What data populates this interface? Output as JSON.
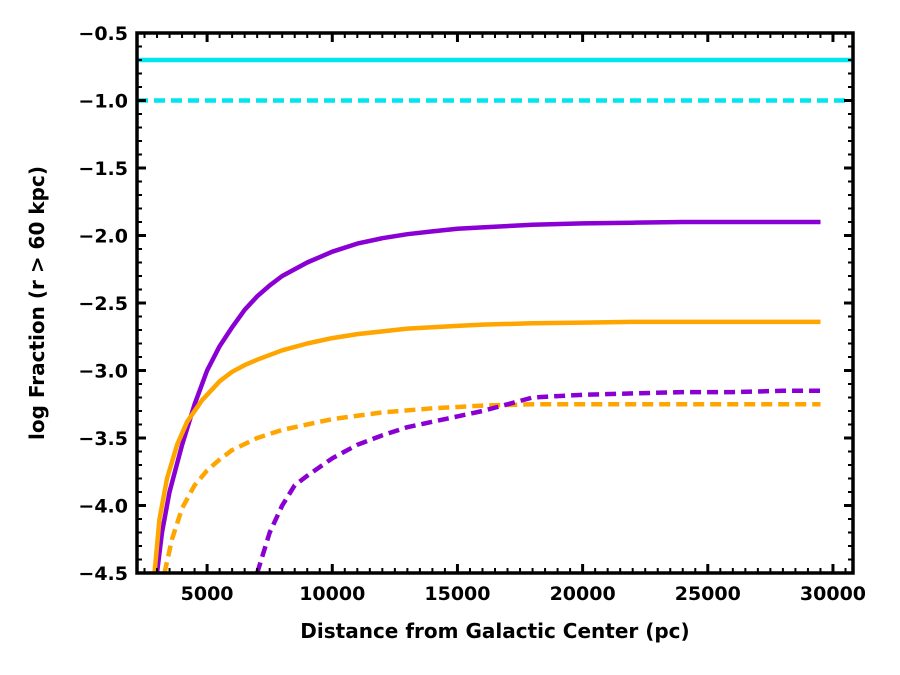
{
  "chart_data": {
    "type": "line",
    "title": "",
    "xlabel": "Distance from Galactic Center (pc)",
    "ylabel": "log Fraction (r > 60 kpc)",
    "xlim": [
      2200,
      30800
    ],
    "ylim": [
      -4.5,
      -0.5
    ],
    "xticks": [
      5000,
      10000,
      15000,
      20000,
      25000,
      30000
    ],
    "yticks": [
      -4.5,
      -4.0,
      -3.5,
      -3.0,
      -2.5,
      -2.0,
      -1.5,
      -1.0,
      -0.5
    ],
    "xtick_labels": [
      "5000",
      "10000",
      "15000",
      "20000",
      "25000",
      "30000"
    ],
    "ytick_labels": [
      "−4.5",
      "−4.0",
      "−3.5",
      "−3.0",
      "−2.5",
      "−2.0",
      "−1.5",
      "−1.0",
      "−0.5"
    ],
    "grid": false,
    "series": [
      {
        "color": "#00e5ee",
        "style": "solid",
        "x": [
          2200,
          30800
        ],
        "y": [
          -0.7,
          -0.7
        ]
      },
      {
        "color": "#00e5ee",
        "style": "dashed",
        "x": [
          2200,
          30800
        ],
        "y": [
          -1.0,
          -1.0
        ]
      },
      {
        "color": "#8a00d4",
        "style": "solid",
        "x": [
          3000,
          3200,
          3500,
          4000,
          4500,
          5000,
          5500,
          6000,
          6500,
          7000,
          7500,
          8000,
          9000,
          10000,
          11000,
          12000,
          13000,
          14000,
          15000,
          16000,
          18000,
          20000,
          22000,
          24000,
          26000,
          28000,
          29500
        ],
        "y": [
          -4.5,
          -4.2,
          -3.9,
          -3.55,
          -3.25,
          -3.0,
          -2.82,
          -2.68,
          -2.55,
          -2.45,
          -2.37,
          -2.3,
          -2.2,
          -2.12,
          -2.06,
          -2.02,
          -1.99,
          -1.97,
          -1.95,
          -1.94,
          -1.92,
          -1.91,
          -1.905,
          -1.9,
          -1.9,
          -1.9,
          -1.9
        ]
      },
      {
        "color": "#ffa500",
        "style": "solid",
        "x": [
          2900,
          3100,
          3400,
          3800,
          4200,
          4800,
          5500,
          6000,
          6500,
          7000,
          8000,
          9000,
          10000,
          11000,
          12000,
          13000,
          14000,
          15000,
          16000,
          18000,
          20000,
          22000,
          24000,
          26000,
          28000,
          29500
        ],
        "y": [
          -4.5,
          -4.1,
          -3.8,
          -3.55,
          -3.38,
          -3.22,
          -3.08,
          -3.01,
          -2.96,
          -2.92,
          -2.85,
          -2.8,
          -2.76,
          -2.73,
          -2.71,
          -2.69,
          -2.68,
          -2.67,
          -2.66,
          -2.65,
          -2.645,
          -2.64,
          -2.64,
          -2.64,
          -2.64,
          -2.64
        ]
      },
      {
        "color": "#ffa500",
        "style": "dashed",
        "x": [
          3300,
          3600,
          4000,
          4500,
          5000,
          5500,
          6000,
          7000,
          8000,
          9000,
          10000,
          12000,
          14000,
          16000,
          18000,
          20000,
          22000,
          24000,
          26000,
          28000,
          29500
        ],
        "y": [
          -4.5,
          -4.25,
          -4.02,
          -3.85,
          -3.74,
          -3.66,
          -3.59,
          -3.5,
          -3.44,
          -3.4,
          -3.36,
          -3.31,
          -3.28,
          -3.26,
          -3.25,
          -3.25,
          -3.25,
          -3.25,
          -3.25,
          -3.25,
          -3.25
        ]
      },
      {
        "color": "#8a00d4",
        "style": "dashed",
        "x": [
          7000,
          7500,
          8000,
          8500,
          9000,
          10000,
          11000,
          12000,
          13000,
          14000,
          15000,
          16000,
          17000,
          18000,
          19000,
          20000,
          22000,
          24000,
          26000,
          28000,
          29500
        ],
        "y": [
          -4.5,
          -4.2,
          -4.0,
          -3.85,
          -3.78,
          -3.65,
          -3.55,
          -3.48,
          -3.42,
          -3.38,
          -3.34,
          -3.3,
          -3.25,
          -3.2,
          -3.19,
          -3.18,
          -3.17,
          -3.16,
          -3.16,
          -3.15,
          -3.15
        ]
      }
    ]
  }
}
